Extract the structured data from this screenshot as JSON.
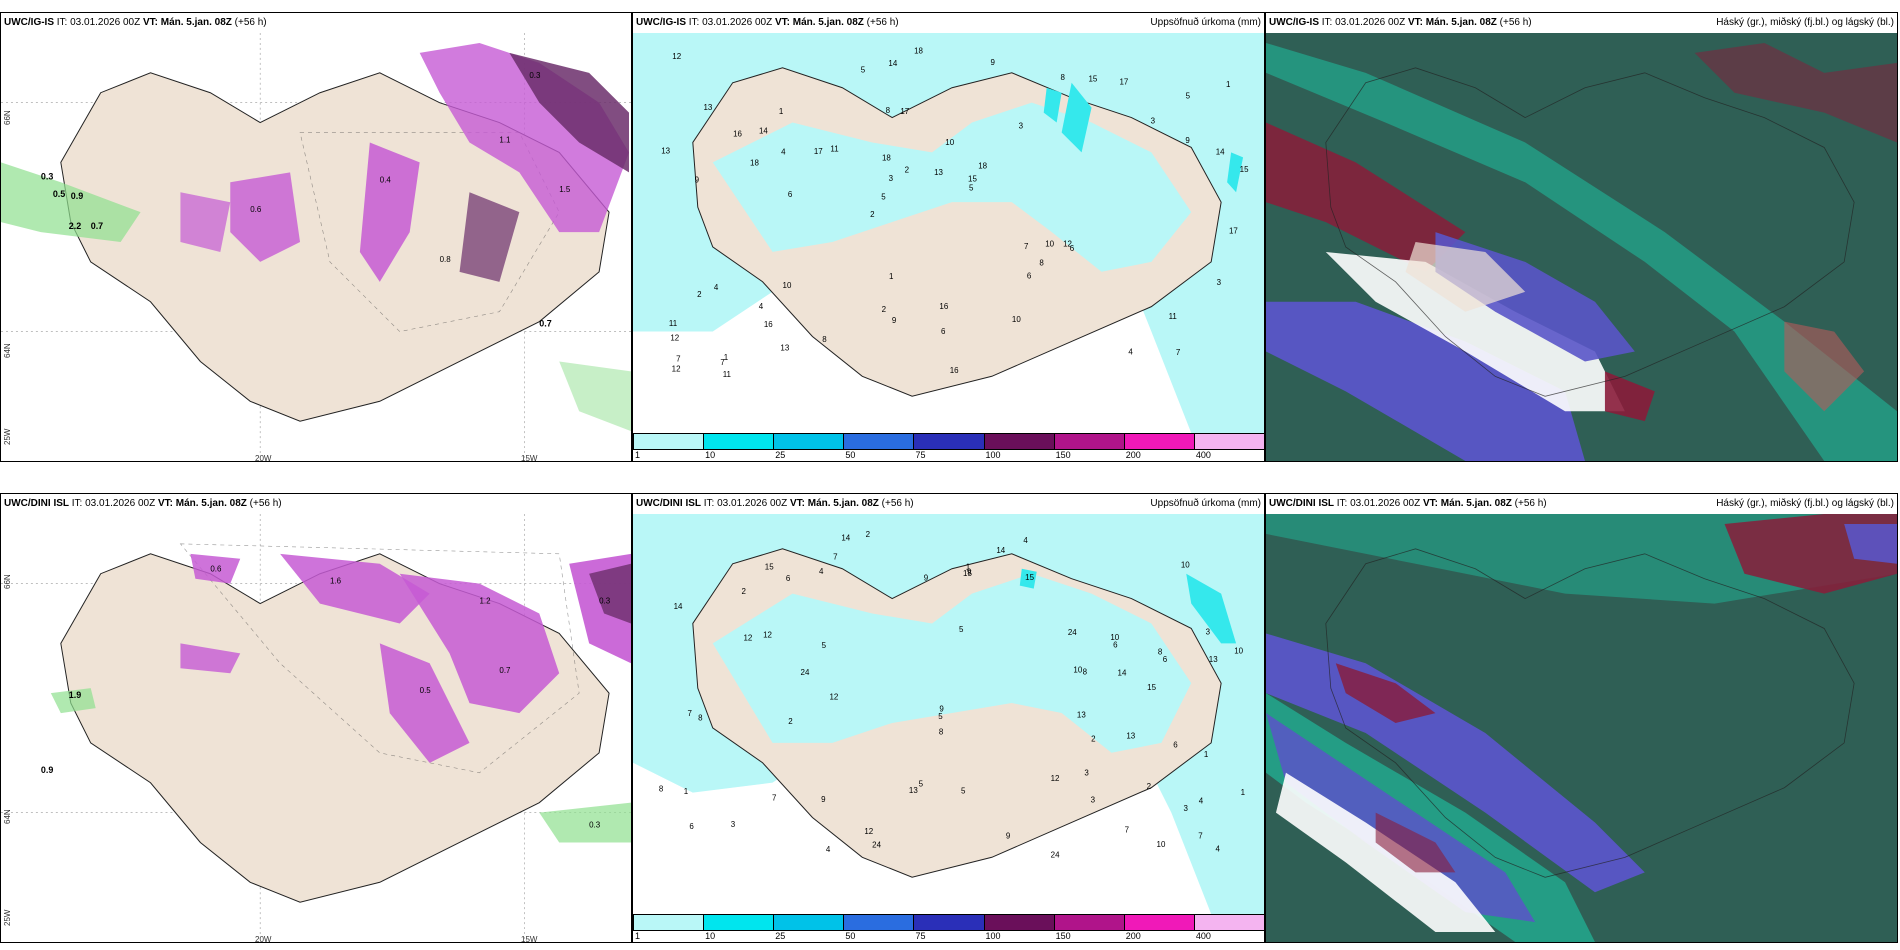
{
  "colors": {
    "land": "#efe3d6",
    "precip_light": "#b9f7f7",
    "precip_mid": "#35e8ec",
    "snow_purple": "#c55ad4",
    "snow_dark": "#6b2e6b",
    "rain_green": "#8fe08f",
    "cloud_dark": "#2f5f55",
    "cloud_teal": "#1fb89a",
    "cloud_blue": "#5a55c8",
    "cloud_red": "#8a1c3a"
  },
  "rows": [
    {
      "model": "UWC/IG-IS",
      "it": "IT: 03.01.2026 00Z",
      "vt": "VT: Mán. 5.jan. 08Z",
      "lead": "(+56 h)",
      "precip_title": "Uppsöfnuð úrkoma (mm)",
      "cloud_title": "Háský (gr.), miðský (fj.bl.) og lágský (bl.)"
    },
    {
      "model": "UWC/DINI ISL",
      "it": "IT: 03.01.2026 00Z",
      "vt": "VT: Mán. 5.jan. 08Z",
      "lead": "(+56 h)",
      "precip_title": "Uppsöfnuð úrkoma (mm)",
      "cloud_title": "Háský (gr.), miðský (fj.bl.) og lágský (bl.)"
    }
  ],
  "axes": {
    "lat_66": "66N",
    "lat_64": "64N",
    "lon_20": "20W",
    "lon_15": "15W",
    "lon_25": "25W"
  },
  "colorbar": {
    "ticks": [
      "1",
      "10",
      "25",
      "50",
      "75",
      "100",
      "150",
      "200",
      "400"
    ],
    "colors": [
      "#b9f7f7",
      "#00e5ee",
      "#00c2e8",
      "#2a6de0",
      "#2a2fb8",
      "#6a0f5a",
      "#b0148a",
      "#f019b8",
      "#f4b4f0"
    ]
  },
  "precip_values_top": [
    "7",
    "9",
    "5",
    "2",
    "3",
    "1",
    "8",
    "10",
    "4",
    "11",
    "12",
    "16",
    "17",
    "18",
    "6",
    "13",
    "14",
    "15"
  ],
  "precip_values_bottom": [
    "2",
    "3",
    "4",
    "5",
    "6",
    "7",
    "8",
    "9",
    "10",
    "12",
    "13",
    "14",
    "15",
    "24",
    "1"
  ],
  "snow_values_top": [
    "0.3",
    "0.5",
    "0.7",
    "0.9",
    "1.1",
    "1.5",
    "0.4",
    "0.6",
    "0.8",
    "0.7",
    "2.2"
  ],
  "snow_values_bottom": [
    "0.3",
    "0.5",
    "0.7",
    "0.9",
    "1.2",
    "1.6",
    "1.9",
    "0.9",
    "0.6"
  ]
}
